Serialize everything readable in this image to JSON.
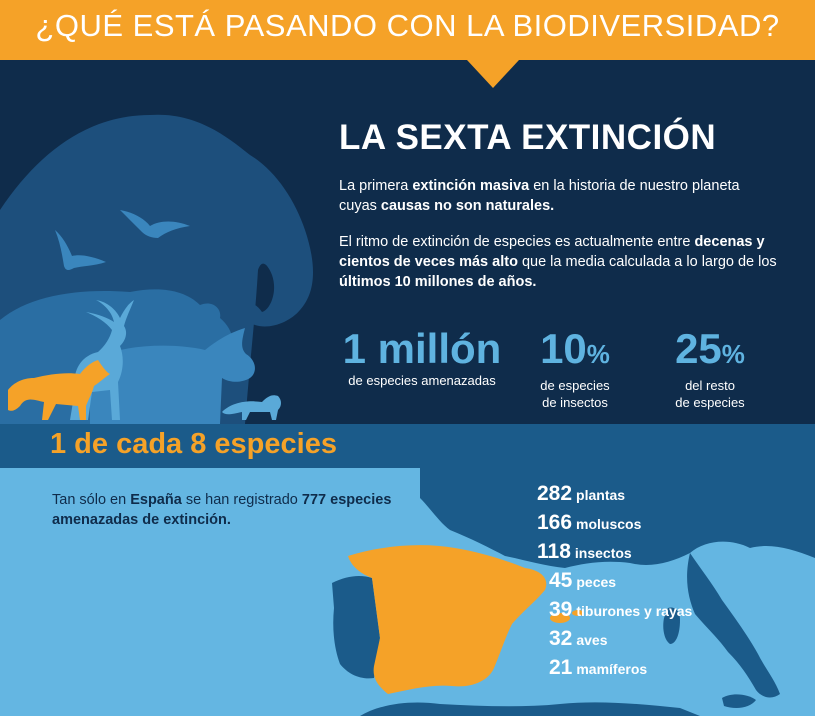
{
  "header": {
    "title": "¿QUÉ ESTÁ PASANDO CON LA BIODIVERSIDAD?"
  },
  "extincion": {
    "title": "LA SEXTA EXTINCIÓN",
    "p1": {
      "a": "La primera ",
      "b1": "extinción masiva",
      "c": " en la historia de nuestro planeta cuyas ",
      "b2": "causas no son naturales."
    },
    "p2": {
      "a": "El ritmo de extinción de especies es actualmente entre ",
      "b1": "decenas y cientos de veces más alto",
      "c": " que la media calculada a lo largo de los ",
      "b2": "últimos 10 millones de años."
    }
  },
  "stats": [
    {
      "value": "1 millón",
      "unit": "",
      "label1": "de especies amenazadas",
      "label2": ""
    },
    {
      "value": "10",
      "unit": "%",
      "label1": "de especies",
      "label2": "de insectos"
    },
    {
      "value": "25",
      "unit": "%",
      "label1": "del resto",
      "label2": "de especies"
    }
  ],
  "band": {
    "text": "1 de cada 8 especies"
  },
  "spain": {
    "a": "Tan sólo en ",
    "b1": "España",
    "c": " se han registrado ",
    "b2": "777 especies amenazadas de extinción."
  },
  "counts": [
    {
      "n": "282",
      "k": "plantas"
    },
    {
      "n": "166",
      "k": "moluscos"
    },
    {
      "n": "118",
      "k": "insectos"
    },
    {
      "n": "45",
      "k": "peces"
    },
    {
      "n": "39",
      "k": "tiburones y rayas"
    },
    {
      "n": "32",
      "k": "aves"
    },
    {
      "n": "21",
      "k": "mamíferos"
    }
  ],
  "colors": {
    "orange": "#f5a228",
    "navy": "#0f2c4b",
    "sky": "#64b6e2",
    "accent_blue": "#5fb3e0"
  }
}
